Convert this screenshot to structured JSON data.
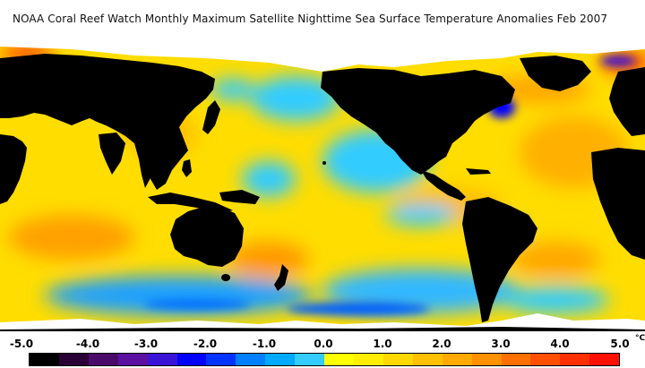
{
  "title": "NOAA Coral Reef Watch Monthly Maximum Satellite Nighttime Sea Surface Temperature Anomalies    Feb 2007",
  "legend": {
    "ticks": [
      "-5.0",
      "-4.0",
      "-3.0",
      "-2.0",
      "-1.0",
      "0.0",
      "1.0",
      "2.0",
      "3.0",
      "4.0",
      "5.0"
    ],
    "unit": "°C",
    "colors": [
      "#000000",
      "#2a0036",
      "#4a0a6a",
      "#5a10a0",
      "#3a14d6",
      "#0000ff",
      "#0033ff",
      "#0080ff",
      "#00aaff",
      "#33ccff",
      "#ffff00",
      "#ffee00",
      "#ffd800",
      "#ffc000",
      "#ffaa00",
      "#ff9000",
      "#ff7000",
      "#ff5000",
      "#ff3000",
      "#ff1000"
    ]
  },
  "colors": {
    "land": "#000000",
    "ice": "#ffffff",
    "ocean_base": "#ffdd00"
  }
}
